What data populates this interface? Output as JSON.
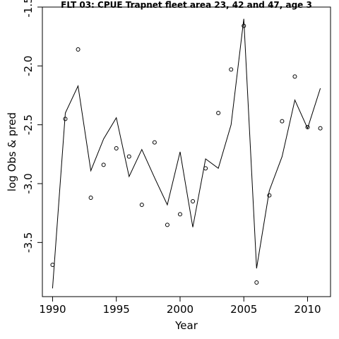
{
  "chart_data": {
    "type": "line",
    "title": "FLT 03: CPUE Trapnet fleet area 23, 42 and 47, age 3",
    "xlabel": "Year",
    "ylabel": "log Obs & pred",
    "xlim": [
      1989.2,
      2011.8
    ],
    "ylim": [
      -3.96,
      -1.5
    ],
    "x_ticks": [
      1990,
      1995,
      2000,
      2005,
      2010
    ],
    "y_ticks": [
      -1.5,
      -2.0,
      -2.5,
      -3.0,
      -3.5
    ],
    "y_tick_labels": [
      "-1.5",
      "-2.0",
      "-2.5",
      "-3.0",
      "-3.5"
    ],
    "grid": false,
    "legend": "none",
    "series": [
      {
        "style": "line",
        "x": [
          1990,
          1991,
          1992,
          1993,
          1994,
          1995,
          1996,
          1997,
          1998,
          1999,
          2000,
          2001,
          2002,
          2003,
          2004,
          2005,
          2006,
          2007,
          2008,
          2009,
          2010,
          2011
        ],
        "values": [
          -3.89,
          -2.4,
          -2.17,
          -2.89,
          -2.62,
          -2.44,
          -2.94,
          -2.71,
          -2.95,
          -3.18,
          -2.73,
          -3.37,
          -2.79,
          -2.87,
          -2.5,
          -1.6,
          -3.72,
          -3.06,
          -2.77,
          -2.29,
          -2.53,
          -2.19
        ]
      },
      {
        "style": "points",
        "x": [
          1990,
          1991,
          1992,
          1993,
          1994,
          1995,
          1996,
          1997,
          1998,
          1999,
          2000,
          2001,
          2002,
          2003,
          2004,
          2005,
          2006,
          2007,
          2008,
          2009,
          2010,
          2011
        ],
        "values": [
          -3.69,
          -2.45,
          -1.86,
          -3.12,
          -2.84,
          -2.7,
          -2.77,
          -3.18,
          -2.65,
          -3.35,
          -3.26,
          -3.15,
          -2.87,
          -2.4,
          -2.03,
          -1.66,
          -3.84,
          -3.1,
          -2.47,
          -2.09,
          -2.52,
          -2.53
        ]
      }
    ]
  }
}
